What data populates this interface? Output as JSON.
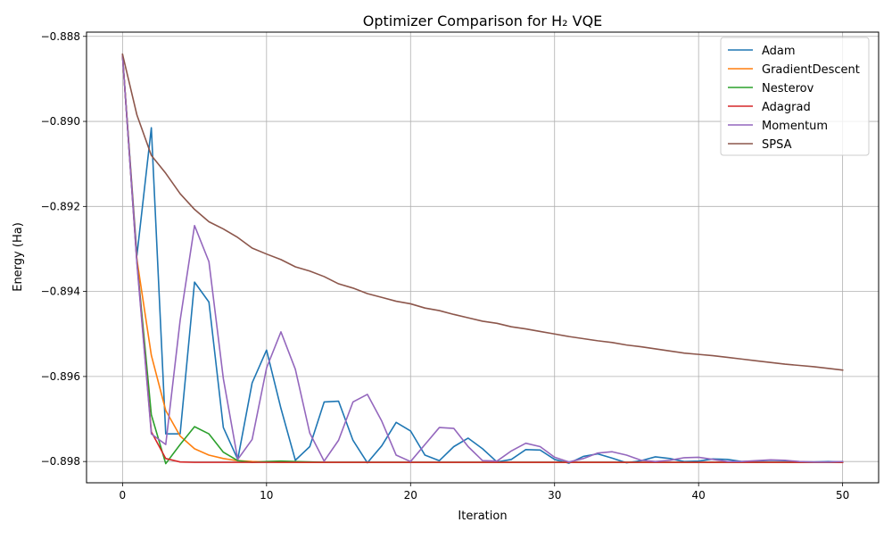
{
  "chart_data": {
    "type": "line",
    "title": "Optimizer Comparison for H₂ VQE",
    "xlabel": "Iteration",
    "ylabel": "Energy (Ha)",
    "xlim": [
      -2.5,
      52.5
    ],
    "ylim": [
      -0.8985,
      -0.8879
    ],
    "xticks": [
      0,
      10,
      20,
      30,
      40,
      50
    ],
    "xtick_labels": [
      "0",
      "10",
      "20",
      "30",
      "40",
      "50"
    ],
    "yticks": [
      -0.898,
      -0.896,
      -0.894,
      -0.892,
      -0.89,
      -0.888
    ],
    "ytick_labels": [
      "−0.898",
      "−0.896",
      "−0.894",
      "−0.892",
      "−0.890",
      "−0.888"
    ],
    "grid": true,
    "legend_position": "top-right",
    "x": [
      0,
      1,
      2,
      3,
      4,
      5,
      6,
      7,
      8,
      9,
      10,
      11,
      12,
      13,
      14,
      15,
      16,
      17,
      18,
      19,
      20,
      21,
      22,
      23,
      24,
      25,
      26,
      27,
      28,
      29,
      30,
      31,
      32,
      33,
      34,
      35,
      36,
      37,
      38,
      39,
      40,
      41,
      42,
      43,
      44,
      45,
      46,
      47,
      48,
      49,
      50
    ],
    "series": [
      {
        "name": "Adam",
        "color": "#1f77b4",
        "values": [
          -0.88845,
          -0.89315,
          -0.89015,
          -0.89735,
          -0.89735,
          -0.89378,
          -0.89425,
          -0.8972,
          -0.89795,
          -0.89615,
          -0.89538,
          -0.89675,
          -0.89797,
          -0.89765,
          -0.8966,
          -0.89658,
          -0.8975,
          -0.89803,
          -0.89763,
          -0.89708,
          -0.89728,
          -0.89785,
          -0.89798,
          -0.89765,
          -0.89745,
          -0.8977,
          -0.89801,
          -0.89795,
          -0.89772,
          -0.89773,
          -0.89795,
          -0.89804,
          -0.89788,
          -0.89782,
          -0.89792,
          -0.89803,
          -0.89798,
          -0.89789,
          -0.89793,
          -0.898,
          -0.89799,
          -0.89794,
          -0.89795,
          -0.898,
          -0.89799,
          -0.89797,
          -0.89798,
          -0.89801,
          -0.89801,
          -0.898,
          -0.89801
        ]
      },
      {
        "name": "GradientDescent",
        "color": "#ff7f0e",
        "values": [
          -0.88845,
          -0.89325,
          -0.8955,
          -0.8968,
          -0.8974,
          -0.8977,
          -0.89785,
          -0.89793,
          -0.89798,
          -0.898,
          -0.89801,
          -0.89802,
          -0.89802,
          -0.89802,
          -0.89802,
          -0.89802,
          -0.89802,
          -0.89802,
          -0.89802,
          -0.89802,
          -0.89802,
          -0.89802,
          -0.89802,
          -0.89802,
          -0.89802,
          -0.89802,
          -0.89802,
          -0.89802,
          -0.89802,
          -0.89802,
          -0.89802,
          -0.89802,
          -0.89802,
          -0.89802,
          -0.89802,
          -0.89802,
          -0.89802,
          -0.89802,
          -0.89802,
          -0.89802,
          -0.89802,
          -0.89802,
          -0.89802,
          -0.89802,
          -0.89802,
          -0.89802,
          -0.89802,
          -0.89802,
          -0.89802,
          -0.89802,
          -0.89802
        ]
      },
      {
        "name": "Nesterov",
        "color": "#2ca02c",
        "values": [
          -0.88845,
          -0.8933,
          -0.8969,
          -0.89805,
          -0.8976,
          -0.89718,
          -0.89735,
          -0.89778,
          -0.89798,
          -0.89802,
          -0.898,
          -0.89799,
          -0.898,
          -0.89801,
          -0.89802,
          -0.89802,
          -0.89802,
          -0.89802,
          -0.89802,
          -0.89802,
          -0.89802,
          -0.89802,
          -0.89802,
          -0.89802,
          -0.89802,
          -0.89802,
          -0.89802,
          -0.89802,
          -0.89802,
          -0.89802,
          -0.89802,
          -0.89802,
          -0.89802,
          -0.89802,
          -0.89802,
          -0.89802,
          -0.89802,
          -0.89802,
          -0.89802,
          -0.89802,
          -0.89802,
          -0.89802,
          -0.89802,
          -0.89802,
          -0.89802,
          -0.89802,
          -0.89802,
          -0.89802,
          -0.89802,
          -0.89802,
          -0.89802
        ]
      },
      {
        "name": "Adagrad",
        "color": "#d62728",
        "values": [
          -0.88845,
          -0.8933,
          -0.8973,
          -0.89793,
          -0.89801,
          -0.89802,
          -0.89802,
          -0.89802,
          -0.89802,
          -0.89802,
          -0.89802,
          -0.89802,
          -0.89802,
          -0.89802,
          -0.89802,
          -0.89802,
          -0.89802,
          -0.89802,
          -0.89802,
          -0.89802,
          -0.89802,
          -0.89802,
          -0.89802,
          -0.89802,
          -0.89802,
          -0.89802,
          -0.89802,
          -0.89802,
          -0.89802,
          -0.89802,
          -0.89802,
          -0.89802,
          -0.89802,
          -0.89802,
          -0.89802,
          -0.89802,
          -0.89802,
          -0.89802,
          -0.89802,
          -0.89802,
          -0.89802,
          -0.89802,
          -0.89802,
          -0.89802,
          -0.89802,
          -0.89802,
          -0.89802,
          -0.89802,
          -0.89802,
          -0.89802,
          -0.89802
        ]
      },
      {
        "name": "Momentum",
        "color": "#9467bd",
        "values": [
          -0.88845,
          -0.89335,
          -0.89735,
          -0.8976,
          -0.89468,
          -0.89245,
          -0.8933,
          -0.89605,
          -0.89795,
          -0.89748,
          -0.8958,
          -0.89495,
          -0.89583,
          -0.89733,
          -0.89799,
          -0.8975,
          -0.8966,
          -0.89642,
          -0.89705,
          -0.89785,
          -0.898,
          -0.8976,
          -0.8972,
          -0.89722,
          -0.89765,
          -0.89798,
          -0.89799,
          -0.89775,
          -0.89757,
          -0.89765,
          -0.8979,
          -0.89801,
          -0.89793,
          -0.8978,
          -0.89777,
          -0.89785,
          -0.89797,
          -0.898,
          -0.89797,
          -0.89791,
          -0.8979,
          -0.89795,
          -0.898,
          -0.898,
          -0.89798,
          -0.89796,
          -0.89797,
          -0.898,
          -0.89801,
          -0.89801,
          -0.898
        ]
      },
      {
        "name": "SPSA",
        "color": "#8c564b",
        "values": [
          -0.88842,
          -0.88985,
          -0.8908,
          -0.89122,
          -0.8917,
          -0.89207,
          -0.89236,
          -0.89253,
          -0.89273,
          -0.89298,
          -0.89312,
          -0.89325,
          -0.89342,
          -0.89352,
          -0.89365,
          -0.89382,
          -0.89392,
          -0.89405,
          -0.89414,
          -0.89423,
          -0.89429,
          -0.89439,
          -0.89445,
          -0.89454,
          -0.89462,
          -0.8947,
          -0.89475,
          -0.89483,
          -0.89488,
          -0.89494,
          -0.895,
          -0.89506,
          -0.89511,
          -0.89516,
          -0.8952,
          -0.89526,
          -0.8953,
          -0.89535,
          -0.8954,
          -0.89545,
          -0.89548,
          -0.89551,
          -0.89555,
          -0.89559,
          -0.89563,
          -0.89567,
          -0.89571,
          -0.89574,
          -0.89577,
          -0.89581,
          -0.89585
        ]
      }
    ]
  }
}
